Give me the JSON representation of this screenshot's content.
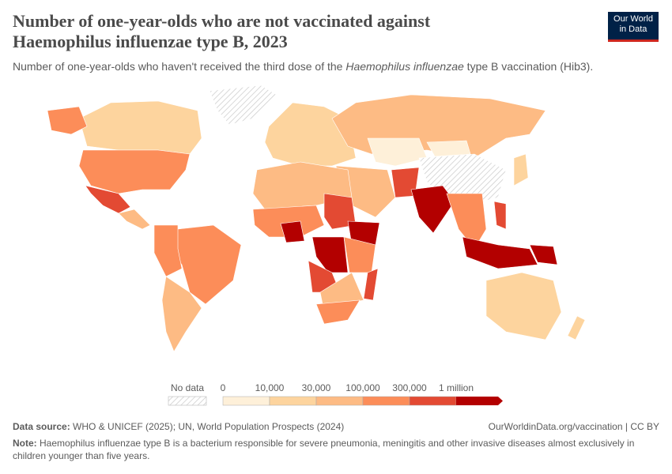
{
  "header": {
    "title": "Number of one-year-olds who are not vaccinated against Haemophilus influenzae type B, 2023",
    "subtitle_pre": "Number of one-year-olds who haven't received the third dose of the ",
    "subtitle_italic": "Haemophilus influenzae",
    "subtitle_post": " type B vaccination (Hib3).",
    "logo_line1": "Our World",
    "logo_line2": "in Data"
  },
  "legend": {
    "no_data_label": "No data",
    "bin_labels": [
      "0",
      "10,000",
      "30,000",
      "100,000",
      "300,000",
      "1 million"
    ],
    "colors": [
      "#fef0d9",
      "#fdd49e",
      "#fdbb84",
      "#fc8d59",
      "#e34a33",
      "#b30000"
    ],
    "no_data_pattern": "hatched"
  },
  "map": {
    "regions": [
      {
        "name": "Canada",
        "bin": 1
      },
      {
        "name": "United States",
        "bin": 3
      },
      {
        "name": "Alaska",
        "bin": 3
      },
      {
        "name": "Mexico",
        "bin": 4
      },
      {
        "name": "Greenland",
        "bin": "no-data"
      },
      {
        "name": "Central America",
        "bin": 2
      },
      {
        "name": "Brazil",
        "bin": 3
      },
      {
        "name": "Andean South America",
        "bin": 3
      },
      {
        "name": "Southern Cone",
        "bin": 2
      },
      {
        "name": "Europe",
        "bin": 1
      },
      {
        "name": "Russia",
        "bin": 2
      },
      {
        "name": "Central Asia",
        "bin": 0
      },
      {
        "name": "China",
        "bin": "no-data"
      },
      {
        "name": "Middle East",
        "bin": 2
      },
      {
        "name": "Pakistan",
        "bin": 4
      },
      {
        "name": "India",
        "bin": 5
      },
      {
        "name": "Southeast Asia",
        "bin": 3
      },
      {
        "name": "Indonesia",
        "bin": 5
      },
      {
        "name": "Australia",
        "bin": 1
      },
      {
        "name": "North Africa",
        "bin": 2
      },
      {
        "name": "Sahel",
        "bin": 3
      },
      {
        "name": "Nigeria",
        "bin": 5
      },
      {
        "name": "Sudan",
        "bin": 4
      },
      {
        "name": "Ethiopia",
        "bin": 5
      },
      {
        "name": "DR Congo",
        "bin": 5
      },
      {
        "name": "Angola",
        "bin": 4
      },
      {
        "name": "East Africa",
        "bin": 3
      },
      {
        "name": "Southern Africa",
        "bin": 2
      },
      {
        "name": "South Africa",
        "bin": 3
      },
      {
        "name": "Madagascar",
        "bin": 4
      },
      {
        "name": "Mongolia",
        "bin": 0
      },
      {
        "name": "Japan",
        "bin": 1
      },
      {
        "name": "Papua New Guinea",
        "bin": 5
      },
      {
        "name": "Philippines",
        "bin": 4
      },
      {
        "name": "New Zealand",
        "bin": 1
      }
    ]
  },
  "footer": {
    "source_label": "Data source:",
    "source_text": " WHO & UNICEF (2025); UN, World Population Prospects (2024)",
    "url": "OurWorldinData.org/vaccination | CC BY",
    "note_label": "Note:",
    "note_text": " Haemophilus influenzae type B is a bacterium responsible for severe pneumonia, meningitis and other invasive diseases almost exclusively in children younger than five years."
  }
}
